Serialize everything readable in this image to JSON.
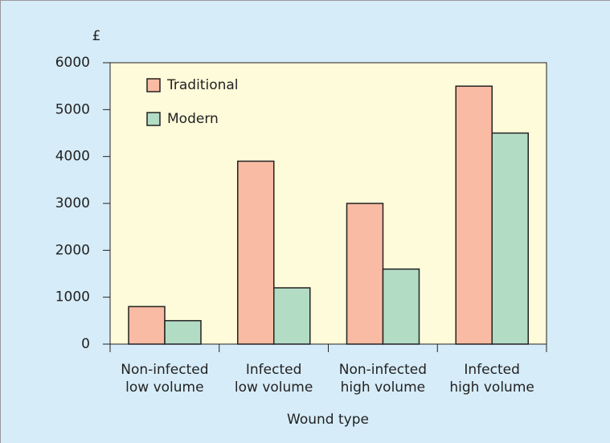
{
  "chart_data": {
    "type": "bar",
    "y_label": "£",
    "x_label": "Wound type",
    "categories": [
      [
        "Non-infected",
        "low volume"
      ],
      [
        "Infected",
        "low volume"
      ],
      [
        "Non-infected",
        "high volume"
      ],
      [
        "Infected",
        "high volume"
      ]
    ],
    "series": [
      {
        "name": "Traditional",
        "color": "#f9bba3",
        "values": [
          800,
          3900,
          3000,
          5500
        ]
      },
      {
        "name": "Modern",
        "color": "#b3dcc4",
        "values": [
          500,
          1200,
          1600,
          4500
        ]
      }
    ],
    "ylim": [
      0,
      6000
    ],
    "yticks": [
      0,
      1000,
      2000,
      3000,
      4000,
      5000,
      6000
    ]
  }
}
